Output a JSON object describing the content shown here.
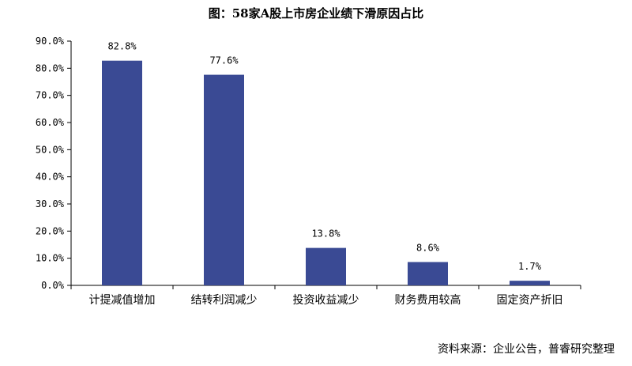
{
  "title": "图：58家A股上市房企业绩下滑原因占比",
  "source": "资料来源：企业公告，普睿研究整理",
  "bar_color": "#3a4a94",
  "chart_data": {
    "type": "bar",
    "title": "图：58家A股上市房企业绩下滑原因占比",
    "categories": [
      "计提减值增加",
      "结转利润减少",
      "投资收益减少",
      "财务费用较高",
      "固定资产折旧"
    ],
    "values": [
      82.8,
      77.6,
      13.8,
      8.6,
      1.7
    ],
    "data_labels": [
      "82.8%",
      "77.6%",
      "13.8%",
      "8.6%",
      "1.7%"
    ],
    "ylim": [
      0,
      90
    ],
    "yticks": [
      0,
      10,
      20,
      30,
      40,
      50,
      60,
      70,
      80,
      90
    ],
    "ytick_labels": [
      "0.0%",
      "10.0%",
      "20.0%",
      "30.0%",
      "40.0%",
      "50.0%",
      "60.0%",
      "70.0%",
      "80.0%",
      "90.0%"
    ],
    "xlabel": "",
    "ylabel": "",
    "grid": false,
    "legend": "none"
  }
}
